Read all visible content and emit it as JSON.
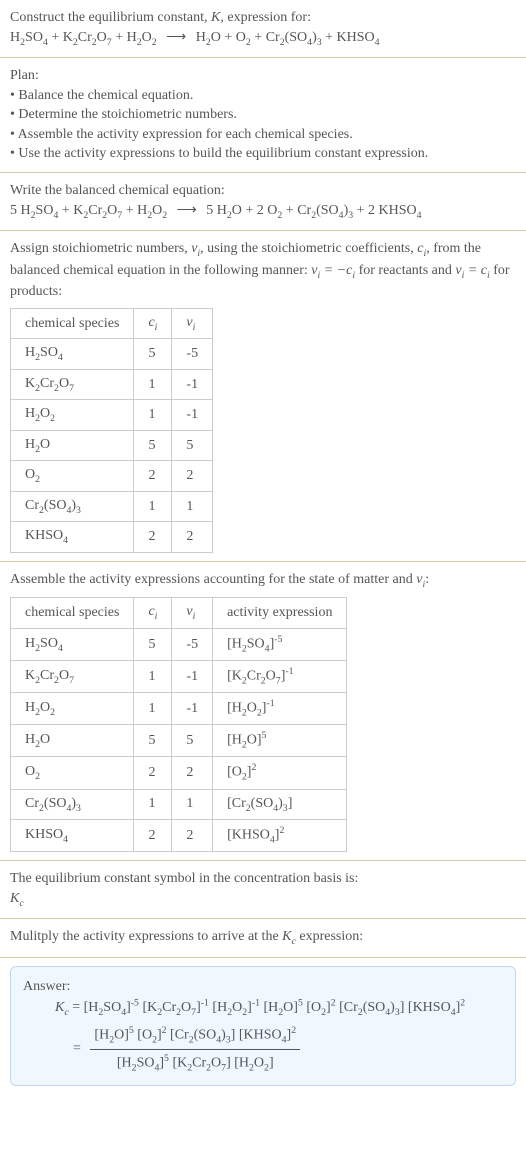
{
  "header": {
    "line1_before": "Construct the equilibrium constant, ",
    "line1_K": "K",
    "line1_after": ", expression for:",
    "equation": {
      "lhs": [
        {
          "f": "H",
          "s": "2"
        },
        {
          "f": "SO",
          "s": "4"
        },
        " + ",
        {
          "f": "K",
          "s": "2"
        },
        {
          "f": "Cr",
          "s": "2"
        },
        {
          "f": "O",
          "s": "7"
        },
        " + ",
        {
          "f": "H",
          "s": "2"
        },
        {
          "f": "O",
          "s": "2"
        }
      ],
      "rhs": [
        {
          "f": "H",
          "s": "2"
        },
        {
          "f": "O"
        },
        " + ",
        {
          "f": "O",
          "s": "2"
        },
        " + ",
        {
          "f": "Cr",
          "s": "2"
        },
        {
          "f": "(SO",
          "s": "4"
        },
        {
          "f": ")",
          "s": "3"
        },
        " + ",
        {
          "f": "KHSO",
          "s": "4"
        }
      ]
    }
  },
  "plan": {
    "title": "Plan:",
    "items": [
      "Balance the chemical equation.",
      "Determine the stoichiometric numbers.",
      "Assemble the activity expression for each chemical species.",
      "Use the activity expressions to build the equilibrium constant expression."
    ]
  },
  "balanced": {
    "title": "Write the balanced chemical equation:",
    "equation": {
      "lhs": [
        "5 ",
        {
          "f": "H",
          "s": "2"
        },
        {
          "f": "SO",
          "s": "4"
        },
        " + ",
        {
          "f": "K",
          "s": "2"
        },
        {
          "f": "Cr",
          "s": "2"
        },
        {
          "f": "O",
          "s": "7"
        },
        " + ",
        {
          "f": "H",
          "s": "2"
        },
        {
          "f": "O",
          "s": "2"
        }
      ],
      "rhs": [
        "5 ",
        {
          "f": "H",
          "s": "2"
        },
        {
          "f": "O"
        },
        " + 2 ",
        {
          "f": "O",
          "s": "2"
        },
        " + ",
        {
          "f": "Cr",
          "s": "2"
        },
        {
          "f": "(SO",
          "s": "4"
        },
        {
          "f": ")",
          "s": "3"
        },
        " + 2 ",
        {
          "f": "KHSO",
          "s": "4"
        }
      ]
    }
  },
  "stoich": {
    "intro_a": "Assign stoichiometric numbers, ",
    "intro_b": ", using the stoichiometric coefficients, ",
    "intro_c": ", from the balanced chemical equation in the following manner: ",
    "intro_d": " for reactants and ",
    "intro_e": " for products:",
    "nu": "ν",
    "c": "c",
    "i": "i",
    "headers": [
      "chemical species",
      "c_i",
      "ν_i"
    ],
    "rows": [
      {
        "sp": [
          {
            "f": "H",
            "s": "2"
          },
          {
            "f": "SO",
            "s": "4"
          }
        ],
        "c": "5",
        "v": "-5"
      },
      {
        "sp": [
          {
            "f": "K",
            "s": "2"
          },
          {
            "f": "Cr",
            "s": "2"
          },
          {
            "f": "O",
            "s": "7"
          }
        ],
        "c": "1",
        "v": "-1"
      },
      {
        "sp": [
          {
            "f": "H",
            "s": "2"
          },
          {
            "f": "O",
            "s": "2"
          }
        ],
        "c": "1",
        "v": "-1"
      },
      {
        "sp": [
          {
            "f": "H",
            "s": "2"
          },
          {
            "f": "O"
          }
        ],
        "c": "5",
        "v": "5"
      },
      {
        "sp": [
          {
            "f": "O",
            "s": "2"
          }
        ],
        "c": "2",
        "v": "2"
      },
      {
        "sp": [
          {
            "f": "Cr",
            "s": "2"
          },
          {
            "f": "(SO",
            "s": "4"
          },
          {
            "f": ")",
            "s": "3"
          }
        ],
        "c": "1",
        "v": "1"
      },
      {
        "sp": [
          {
            "f": "KHSO",
            "s": "4"
          }
        ],
        "c": "2",
        "v": "2"
      }
    ]
  },
  "activity": {
    "intro_a": "Assemble the activity expressions accounting for the state of matter and ",
    "intro_b": ":",
    "headers": [
      "chemical species",
      "c_i",
      "ν_i",
      "activity expression"
    ],
    "rows": [
      {
        "sp": [
          {
            "f": "H",
            "s": "2"
          },
          {
            "f": "SO",
            "s": "4"
          }
        ],
        "c": "5",
        "v": "-5",
        "exp": "-5"
      },
      {
        "sp": [
          {
            "f": "K",
            "s": "2"
          },
          {
            "f": "Cr",
            "s": "2"
          },
          {
            "f": "O",
            "s": "7"
          }
        ],
        "c": "1",
        "v": "-1",
        "exp": "-1"
      },
      {
        "sp": [
          {
            "f": "H",
            "s": "2"
          },
          {
            "f": "O",
            "s": "2"
          }
        ],
        "c": "1",
        "v": "-1",
        "exp": "-1"
      },
      {
        "sp": [
          {
            "f": "H",
            "s": "2"
          },
          {
            "f": "O"
          }
        ],
        "c": "5",
        "v": "5",
        "exp": "5"
      },
      {
        "sp": [
          {
            "f": "O",
            "s": "2"
          }
        ],
        "c": "2",
        "v": "2",
        "exp": "2"
      },
      {
        "sp": [
          {
            "f": "Cr",
            "s": "2"
          },
          {
            "f": "(SO",
            "s": "4"
          },
          {
            "f": ")",
            "s": "3"
          }
        ],
        "c": "1",
        "v": "1",
        "exp": ""
      },
      {
        "sp": [
          {
            "f": "KHSO",
            "s": "4"
          }
        ],
        "c": "2",
        "v": "2",
        "exp": "2"
      }
    ]
  },
  "symbolSection": {
    "line": "The equilibrium constant symbol in the concentration basis is:",
    "Kc": "K",
    "c": "c"
  },
  "multiply": {
    "line_a": "Mulitply the activity expressions to arrive at the ",
    "line_b": " expression:"
  },
  "answer": {
    "label": "Answer:",
    "terms": [
      {
        "sp": [
          {
            "f": "H",
            "s": "2"
          },
          {
            "f": "SO",
            "s": "4"
          }
        ],
        "exp": "-5"
      },
      {
        "sp": [
          {
            "f": "K",
            "s": "2"
          },
          {
            "f": "Cr",
            "s": "2"
          },
          {
            "f": "O",
            "s": "7"
          }
        ],
        "exp": "-1"
      },
      {
        "sp": [
          {
            "f": "H",
            "s": "2"
          },
          {
            "f": "O",
            "s": "2"
          }
        ],
        "exp": "-1"
      },
      {
        "sp": [
          {
            "f": "H",
            "s": "2"
          },
          {
            "f": "O"
          }
        ],
        "exp": "5"
      },
      {
        "sp": [
          {
            "f": "O",
            "s": "2"
          }
        ],
        "exp": "2"
      },
      {
        "sp": [
          {
            "f": "Cr",
            "s": "2"
          },
          {
            "f": "(SO",
            "s": "4"
          },
          {
            "f": ")",
            "s": "3"
          }
        ],
        "exp": ""
      },
      {
        "sp": [
          {
            "f": "KHSO",
            "s": "4"
          }
        ],
        "exp": "2"
      }
    ],
    "num": [
      {
        "sp": [
          {
            "f": "H",
            "s": "2"
          },
          {
            "f": "O"
          }
        ],
        "exp": "5"
      },
      {
        "sp": [
          {
            "f": "O",
            "s": "2"
          }
        ],
        "exp": "2"
      },
      {
        "sp": [
          {
            "f": "Cr",
            "s": "2"
          },
          {
            "f": "(SO",
            "s": "4"
          },
          {
            "f": ")",
            "s": "3"
          }
        ],
        "exp": ""
      },
      {
        "sp": [
          {
            "f": "KHSO",
            "s": "4"
          }
        ],
        "exp": "2"
      }
    ],
    "den": [
      {
        "sp": [
          {
            "f": "H",
            "s": "2"
          },
          {
            "f": "SO",
            "s": "4"
          }
        ],
        "exp": "5"
      },
      {
        "sp": [
          {
            "f": "K",
            "s": "2"
          },
          {
            "f": "Cr",
            "s": "2"
          },
          {
            "f": "O",
            "s": "7"
          }
        ],
        "exp": ""
      },
      {
        "sp": [
          {
            "f": "H",
            "s": "2"
          },
          {
            "f": "O",
            "s": "2"
          }
        ],
        "exp": ""
      }
    ]
  }
}
